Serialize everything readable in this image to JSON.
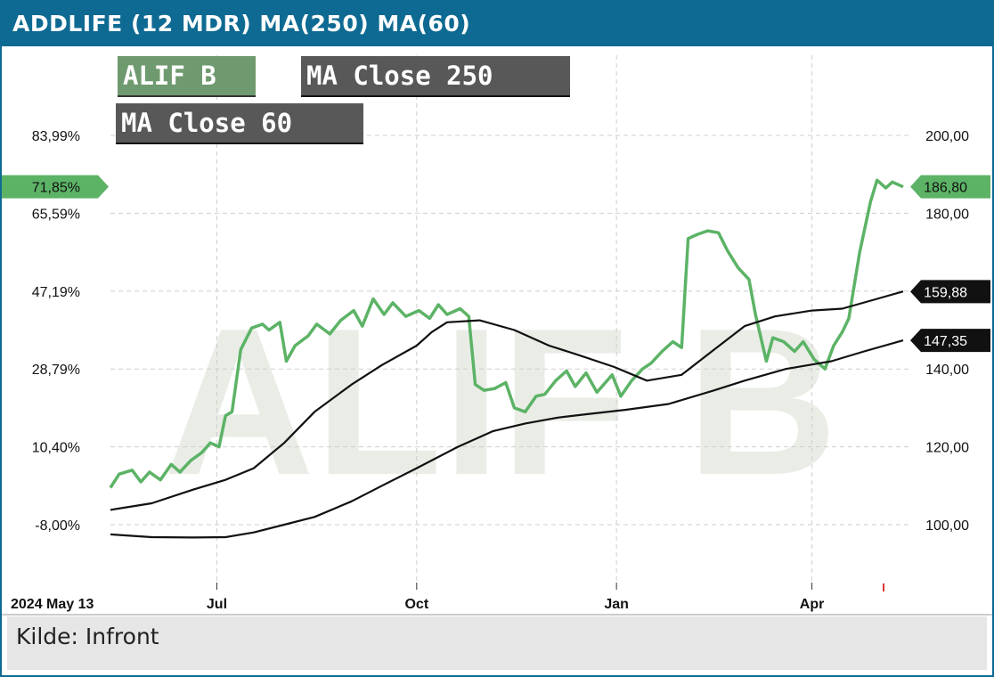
{
  "header": {
    "title": "ADDLIFE (12 MDR) MA(250) MA(60)"
  },
  "footer": {
    "source": "Kilde: Infront"
  },
  "watermark": "ALIF B",
  "colors": {
    "header": "#0e6a92",
    "price": "#5cb366",
    "ma": "#111111"
  },
  "chart_data": {
    "type": "line",
    "title": "ADDLIFE (12 MDR) MA(250) MA(60)",
    "x_range": [
      "2024-05-13",
      "2025-05-13"
    ],
    "x_ticks": [
      {
        "label": "2024 May 13",
        "date": "2024-05-13"
      },
      {
        "label": "Jul",
        "date": "2024-07-01"
      },
      {
        "label": "Oct",
        "date": "2024-10-01"
      },
      {
        "label": "Jan",
        "date": "2025-01-01"
      },
      {
        "label": "Apr",
        "date": "2025-04-01"
      }
    ],
    "y_left_ticks": [
      "83,99%",
      "65,59%",
      "47,19%",
      "28,79%",
      "10,40%",
      "-8,00%"
    ],
    "y_right_ticks": [
      "200,00",
      "180,00",
      "140,00",
      "120,00",
      "100,00"
    ],
    "y_right_values": [
      200,
      180,
      140,
      120,
      100
    ],
    "y_right_range": [
      84,
      207
    ],
    "last_values": [
      {
        "series": "ALIF B",
        "pct": "71,85%",
        "value": "186,80"
      },
      {
        "series": "MA Close 60",
        "value": "159,88"
      },
      {
        "series": "MA Close 250",
        "value": "147,35"
      }
    ],
    "series": [
      {
        "name": "ALIF B",
        "color": "#5cb366",
        "points": [
          [
            "2024-05-13",
            109.5
          ],
          [
            "2024-05-17",
            113.0
          ],
          [
            "2024-05-23",
            114.0
          ],
          [
            "2024-05-27",
            111.0
          ],
          [
            "2024-05-31",
            113.5
          ],
          [
            "2024-06-05",
            111.5
          ],
          [
            "2024-06-10",
            115.5
          ],
          [
            "2024-06-14",
            113.5
          ],
          [
            "2024-06-19",
            116.5
          ],
          [
            "2024-06-24",
            118.5
          ],
          [
            "2024-06-28",
            121.0
          ],
          [
            "2024-07-02",
            120.0
          ],
          [
            "2024-07-05",
            128.0
          ],
          [
            "2024-07-08",
            129.0
          ],
          [
            "2024-07-12",
            145.0
          ],
          [
            "2024-07-17",
            150.5
          ],
          [
            "2024-07-22",
            151.5
          ],
          [
            "2024-07-25",
            150.0
          ],
          [
            "2024-07-30",
            152.0
          ],
          [
            "2024-08-02",
            142.0
          ],
          [
            "2024-08-06",
            146.0
          ],
          [
            "2024-08-12",
            148.5
          ],
          [
            "2024-08-16",
            151.5
          ],
          [
            "2024-08-22",
            149.0
          ],
          [
            "2024-08-27",
            152.5
          ],
          [
            "2024-09-02",
            155.0
          ],
          [
            "2024-09-06",
            151.0
          ],
          [
            "2024-09-11",
            158.0
          ],
          [
            "2024-09-16",
            154.0
          ],
          [
            "2024-09-20",
            157.0
          ],
          [
            "2024-09-26",
            153.5
          ],
          [
            "2024-10-02",
            155.0
          ],
          [
            "2024-10-07",
            153.0
          ],
          [
            "2024-10-11",
            156.5
          ],
          [
            "2024-10-15",
            154.0
          ],
          [
            "2024-10-21",
            155.5
          ],
          [
            "2024-10-25",
            153.5
          ],
          [
            "2024-10-28",
            136.0
          ],
          [
            "2024-11-01",
            134.5
          ],
          [
            "2024-11-06",
            135.0
          ],
          [
            "2024-11-11",
            136.5
          ],
          [
            "2024-11-15",
            130.0
          ],
          [
            "2024-11-20",
            129.0
          ],
          [
            "2024-11-25",
            133.0
          ],
          [
            "2024-11-29",
            133.5
          ],
          [
            "2024-12-04",
            137.0
          ],
          [
            "2024-12-09",
            139.5
          ],
          [
            "2024-12-13",
            135.5
          ],
          [
            "2024-12-18",
            139.0
          ],
          [
            "2024-12-23",
            134.0
          ],
          [
            "2024-12-30",
            138.5
          ],
          [
            "2025-01-03",
            133.0
          ],
          [
            "2025-01-08",
            137.0
          ],
          [
            "2025-01-13",
            140.0
          ],
          [
            "2025-01-17",
            141.5
          ],
          [
            "2025-01-22",
            144.5
          ],
          [
            "2025-01-27",
            147.0
          ],
          [
            "2025-01-31",
            145.5
          ],
          [
            "2025-02-03",
            173.5
          ],
          [
            "2025-02-07",
            174.5
          ],
          [
            "2025-02-12",
            175.5
          ],
          [
            "2025-02-17",
            175.0
          ],
          [
            "2025-02-21",
            170.5
          ],
          [
            "2025-02-26",
            166.0
          ],
          [
            "2025-03-03",
            163.0
          ],
          [
            "2025-03-06",
            154.0
          ],
          [
            "2025-03-11",
            142.0
          ],
          [
            "2025-03-14",
            148.0
          ],
          [
            "2025-03-19",
            147.0
          ],
          [
            "2025-03-24",
            144.5
          ],
          [
            "2025-03-28",
            147.0
          ],
          [
            "2025-04-02",
            142.5
          ],
          [
            "2025-04-07",
            140.0
          ],
          [
            "2025-04-11",
            146.0
          ],
          [
            "2025-04-15",
            149.5
          ],
          [
            "2025-04-18",
            153.0
          ],
          [
            "2025-04-23",
            170.0
          ],
          [
            "2025-04-28",
            183.0
          ],
          [
            "2025-05-01",
            188.5
          ],
          [
            "2025-05-05",
            186.5
          ],
          [
            "2025-05-08",
            188.0
          ],
          [
            "2025-05-13",
            186.8
          ]
        ]
      },
      {
        "name": "MA Close 60",
        "color": "#111111",
        "points": [
          [
            "2024-05-13",
            103.8
          ],
          [
            "2024-06-01",
            105.5
          ],
          [
            "2024-06-20",
            109.0
          ],
          [
            "2024-07-05",
            111.5
          ],
          [
            "2024-07-18",
            114.5
          ],
          [
            "2024-08-01",
            121.0
          ],
          [
            "2024-08-15",
            129.0
          ],
          [
            "2024-09-01",
            136.0
          ],
          [
            "2024-09-15",
            141.0
          ],
          [
            "2024-10-01",
            146.0
          ],
          [
            "2024-10-08",
            149.5
          ],
          [
            "2024-10-15",
            152.0
          ],
          [
            "2024-10-30",
            152.5
          ],
          [
            "2024-11-15",
            150.0
          ],
          [
            "2024-12-01",
            146.0
          ],
          [
            "2024-12-15",
            143.5
          ],
          [
            "2024-12-31",
            140.5
          ],
          [
            "2025-01-15",
            137.0
          ],
          [
            "2025-01-31",
            138.5
          ],
          [
            "2025-02-15",
            145.0
          ],
          [
            "2025-03-01",
            151.0
          ],
          [
            "2025-03-15",
            153.5
          ],
          [
            "2025-04-01",
            155.0
          ],
          [
            "2025-04-15",
            155.5
          ],
          [
            "2025-05-01",
            158.0
          ],
          [
            "2025-05-13",
            159.9
          ]
        ]
      },
      {
        "name": "MA Close 250",
        "color": "#111111",
        "points": [
          [
            "2024-05-13",
            97.5
          ],
          [
            "2024-06-01",
            96.8
          ],
          [
            "2024-06-20",
            96.7
          ],
          [
            "2024-07-05",
            96.8
          ],
          [
            "2024-07-18",
            98.0
          ],
          [
            "2024-08-01",
            100.0
          ],
          [
            "2024-08-15",
            102.0
          ],
          [
            "2024-09-01",
            106.0
          ],
          [
            "2024-09-15",
            110.0
          ],
          [
            "2024-10-01",
            114.5
          ],
          [
            "2024-10-20",
            120.0
          ],
          [
            "2024-11-05",
            124.0
          ],
          [
            "2024-11-20",
            126.0
          ],
          [
            "2024-12-05",
            127.5
          ],
          [
            "2024-12-20",
            128.5
          ],
          [
            "2025-01-05",
            129.5
          ],
          [
            "2025-01-25",
            131.0
          ],
          [
            "2025-02-15",
            134.5
          ],
          [
            "2025-03-01",
            137.0
          ],
          [
            "2025-03-20",
            140.0
          ],
          [
            "2025-04-10",
            142.0
          ],
          [
            "2025-04-25",
            144.5
          ],
          [
            "2025-05-13",
            147.35
          ]
        ]
      }
    ],
    "grid": true,
    "legend": [
      "ALIF B",
      "MA Close 250",
      "MA Close 60"
    ]
  }
}
